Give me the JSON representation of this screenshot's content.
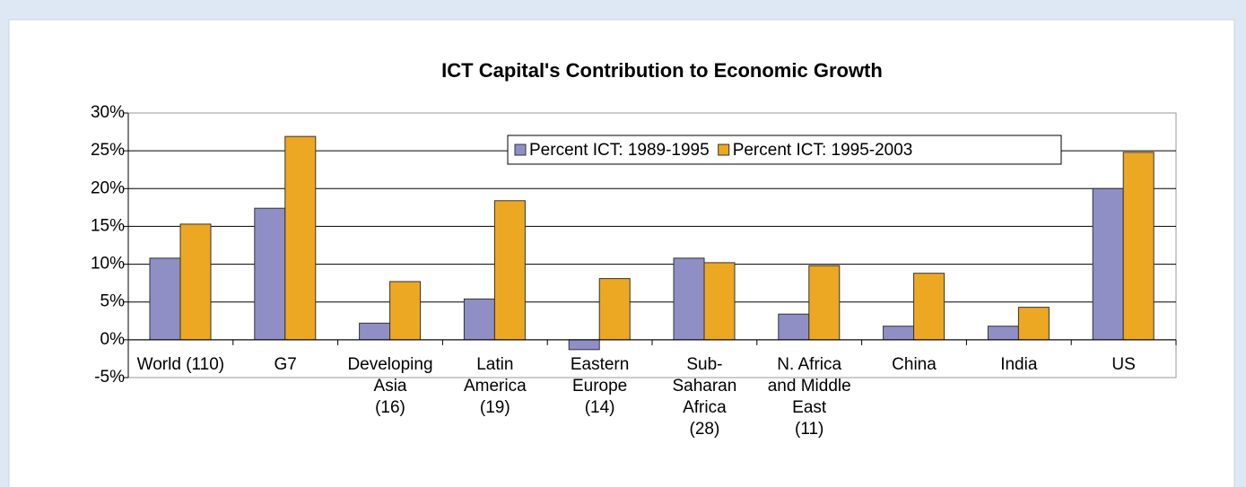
{
  "chart_data": {
    "type": "bar",
    "title": "ICT Capital's Contribution to Economic Growth",
    "categories": [
      [
        "World (110)"
      ],
      [
        "G7"
      ],
      [
        "Developing",
        "Asia",
        "(16)"
      ],
      [
        "Latin",
        "America",
        "(19)"
      ],
      [
        "Eastern",
        "Europe",
        "(14)"
      ],
      [
        "Sub-",
        "Saharan",
        "Africa",
        "(28)"
      ],
      [
        "N. Africa",
        "and Middle",
        "East",
        "(11)"
      ],
      [
        "China"
      ],
      [
        "India"
      ],
      [
        "US"
      ]
    ],
    "series": [
      {
        "name": "Percent ICT: 1989-1995",
        "color": "#8f8fc6",
        "values": [
          10.8,
          17.4,
          2.2,
          5.4,
          -1.3,
          10.8,
          3.4,
          1.8,
          1.8,
          20
        ]
      },
      {
        "name": "Percent ICT: 1995-2003",
        "color": "#eca822",
        "values": [
          15.3,
          26.9,
          7.7,
          18.4,
          8.1,
          10.2,
          9.8,
          8.8,
          4.3,
          24.8
        ]
      }
    ],
    "ylim": [
      -5,
      30
    ],
    "yticks": [
      {
        "value": -5,
        "label": "-5%"
      },
      {
        "value": 0,
        "label": "0%"
      },
      {
        "value": 5,
        "label": "5%"
      },
      {
        "value": 10,
        "label": "10%"
      },
      {
        "value": 15,
        "label": "15%"
      },
      {
        "value": 20,
        "label": "20%"
      },
      {
        "value": 25,
        "label": "25%"
      },
      {
        "value": 30,
        "label": "30%"
      }
    ],
    "grid": true,
    "legend": "top-right"
  }
}
